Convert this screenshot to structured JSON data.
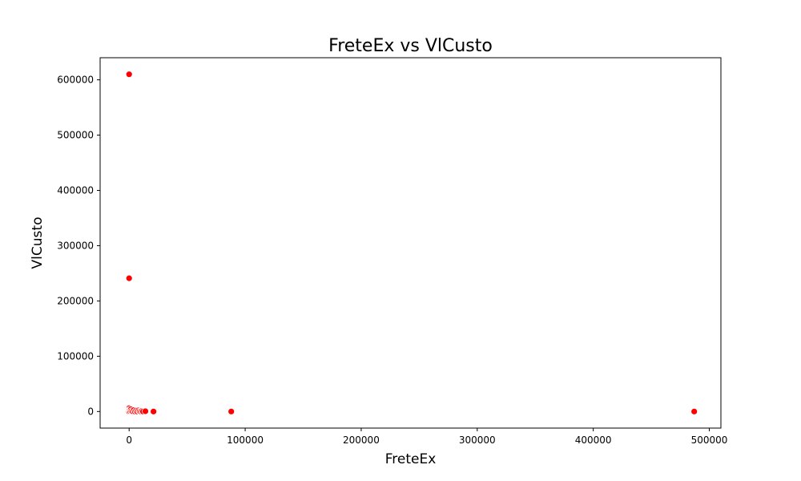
{
  "chart_data": {
    "type": "scatter",
    "title": "FreteEx vs VlCusto",
    "xlabel": "FreteEx",
    "ylabel": "VlCusto",
    "xlim": [
      -25000,
      510000
    ],
    "ylim": [
      -30000,
      640000
    ],
    "xticks": [
      0,
      100000,
      200000,
      300000,
      400000,
      500000
    ],
    "yticks": [
      0,
      100000,
      200000,
      300000,
      400000,
      500000,
      600000
    ],
    "grid": false,
    "legend": "none",
    "color": "#ff0000",
    "series": [
      {
        "points": [
          {
            "x": 0,
            "y": 610000
          },
          {
            "x": 0,
            "y": 241000
          },
          {
            "x": 0,
            "y": 6000
          },
          {
            "x": 0,
            "y": 3000
          },
          {
            "x": 0,
            "y": 1000
          },
          {
            "x": 0,
            "y": 0
          },
          {
            "x": 500,
            "y": 2000
          },
          {
            "x": 1000,
            "y": 500
          },
          {
            "x": 1500,
            "y": 4000
          },
          {
            "x": 2000,
            "y": 1000
          },
          {
            "x": 3000,
            "y": 500
          },
          {
            "x": 4000,
            "y": 2500
          },
          {
            "x": 5000,
            "y": 0
          },
          {
            "x": 6000,
            "y": 1500
          },
          {
            "x": 7000,
            "y": 0
          },
          {
            "x": 8000,
            "y": 2000
          },
          {
            "x": 9000,
            "y": 500
          },
          {
            "x": 10000,
            "y": 0
          },
          {
            "x": 11000,
            "y": 1000
          },
          {
            "x": 12000,
            "y": 0
          },
          {
            "x": 14000,
            "y": 500
          },
          {
            "x": 21000,
            "y": 0
          },
          {
            "x": 88000,
            "y": 0
          },
          {
            "x": 487000,
            "y": 0
          }
        ]
      }
    ]
  }
}
